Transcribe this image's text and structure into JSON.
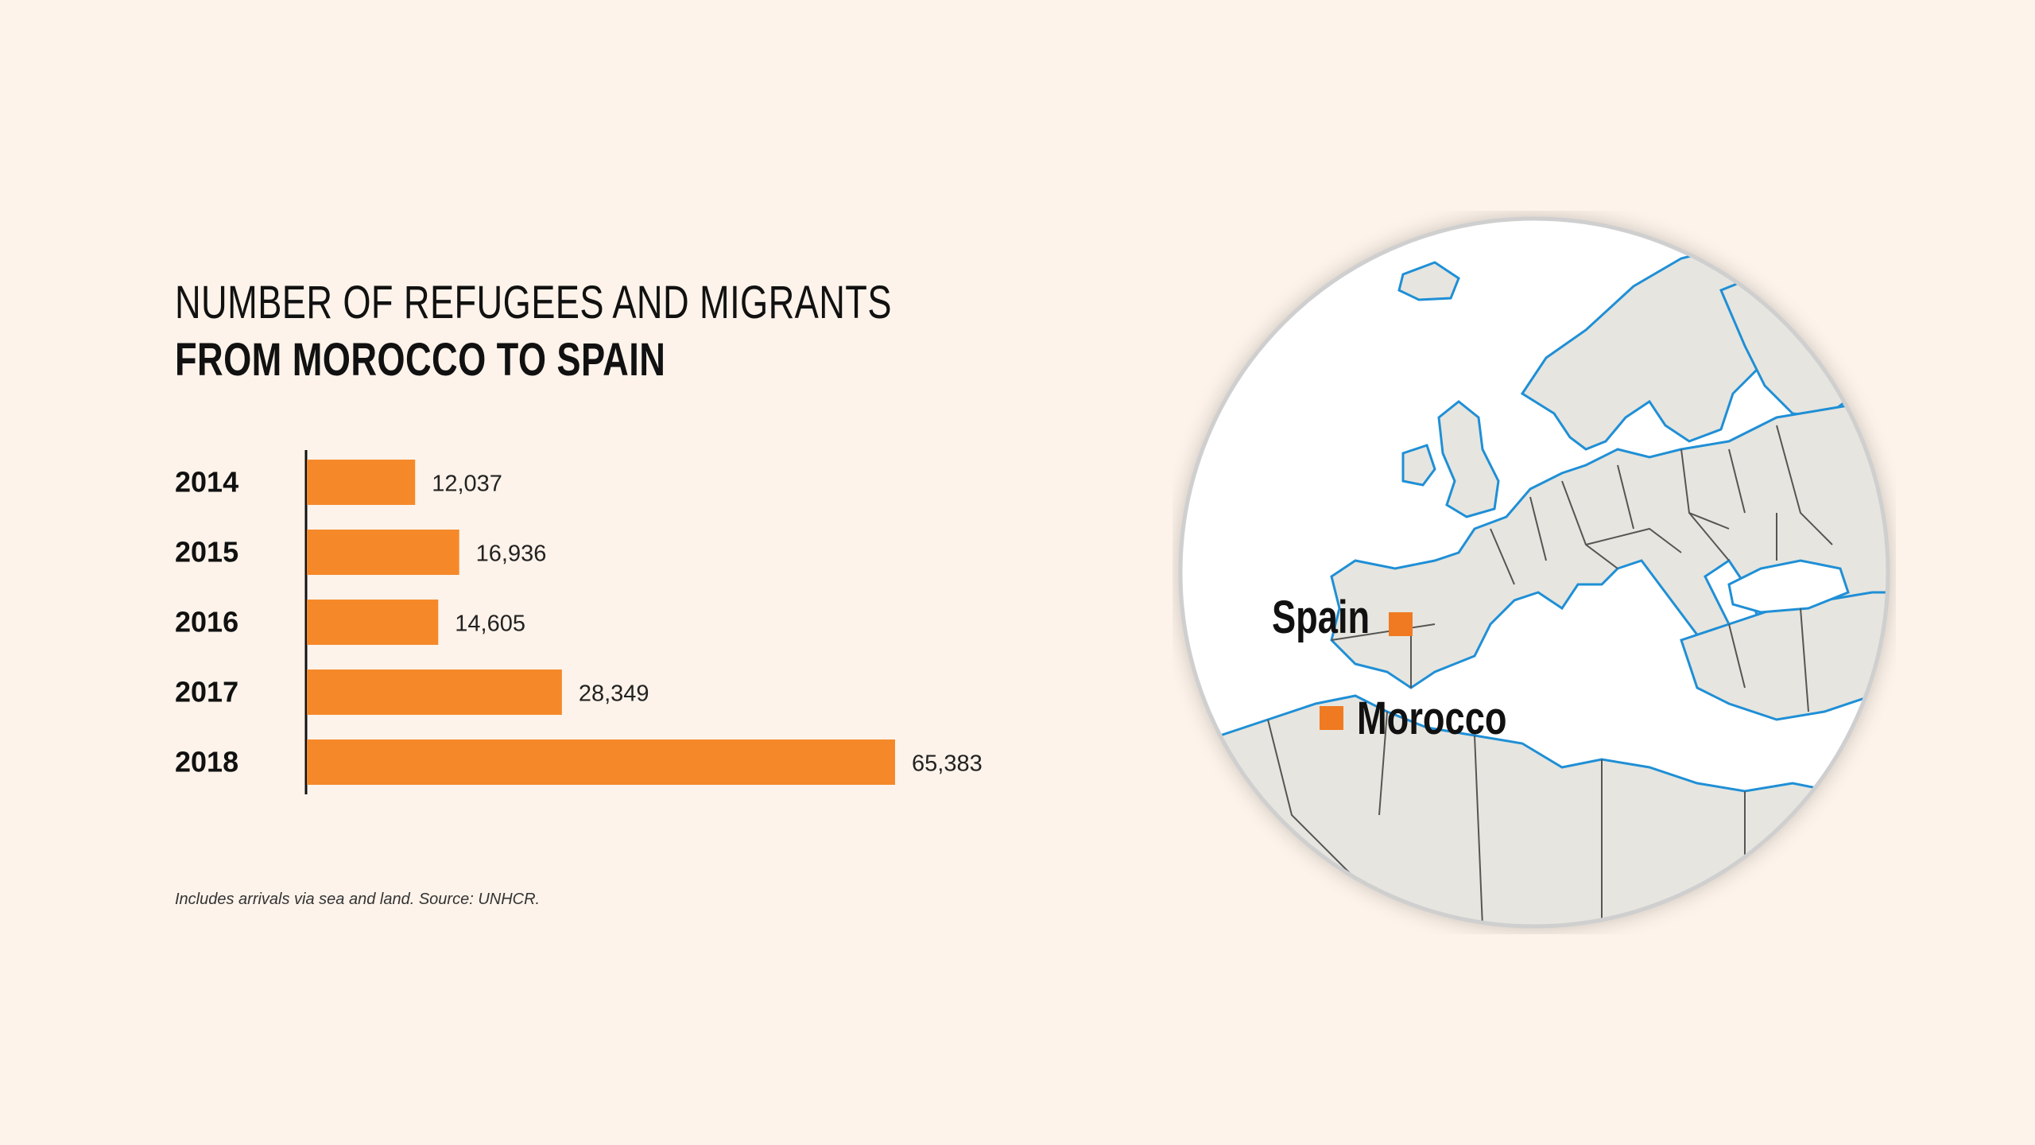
{
  "title": {
    "line1": "NUMBER OF REFUGEES AND MIGRANTS",
    "line2": "FROM MOROCCO TO SPAIN"
  },
  "footnote": "Includes arrivals via sea and land. Source: UNHCR.",
  "colors": {
    "background": "#fdf3ea",
    "bar": "#f5892a",
    "land": "#e6e5df",
    "sea": "#ffffff",
    "coast": "#1f8fd6",
    "border": "#555555",
    "marker": "#f07a21"
  },
  "chart_data": {
    "type": "bar",
    "orientation": "horizontal",
    "categories": [
      "2014",
      "2015",
      "2016",
      "2017",
      "2018"
    ],
    "values": [
      12037,
      16936,
      14605,
      28349,
      65383
    ],
    "value_labels": [
      "12,037",
      "16,936",
      "14,605",
      "28,349",
      "65,383"
    ],
    "title": "NUMBER OF REFUGEES AND MIGRANTS FROM MOROCCO TO SPAIN",
    "xlim": [
      0,
      65383
    ]
  },
  "map": {
    "labels": [
      {
        "id": "spain",
        "text": "Spain"
      },
      {
        "id": "morocco",
        "text": "Morocco"
      }
    ]
  }
}
